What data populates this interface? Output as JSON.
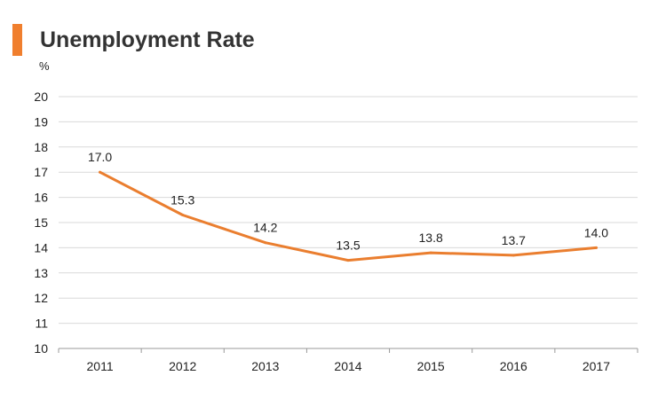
{
  "header": {
    "title": "Unemployment Rate"
  },
  "chart_data": {
    "type": "line",
    "title": "Unemployment Rate",
    "unit_label": "%",
    "xlabel": "",
    "ylabel": "",
    "categories": [
      "2011",
      "2012",
      "2013",
      "2014",
      "2015",
      "2016",
      "2017"
    ],
    "values": [
      17.0,
      15.3,
      14.2,
      13.5,
      13.8,
      13.7,
      14.0
    ],
    "value_labels": [
      "17.0",
      "15.3",
      "14.2",
      "13.5",
      "13.8",
      "13.7",
      "14.0"
    ],
    "ylim": [
      10,
      20
    ],
    "yticks": [
      "10",
      "11",
      "12",
      "13",
      "14",
      "15",
      "16",
      "17",
      "18",
      "19",
      "20"
    ],
    "grid": true,
    "legend": "none",
    "colors": {
      "line": "#ea7e2f",
      "accent": "#f07f2e",
      "grid": "#d9d9d9",
      "text": "#222222"
    }
  }
}
